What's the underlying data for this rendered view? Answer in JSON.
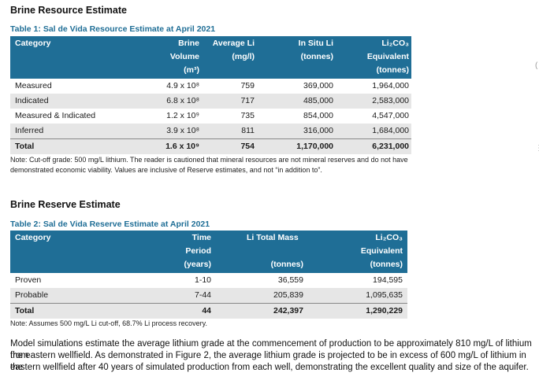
{
  "resource": {
    "heading": "Brine Resource Estimate",
    "caption": "Table 1:  Sal de Vida Resource Estimate at April 2021",
    "headers": {
      "category": "Category",
      "brine_volume": [
        "Brine",
        "Volume",
        "(m³)"
      ],
      "avg_li": [
        "Average Li",
        "(mg/l)"
      ],
      "in_situ_li": [
        "In Situ Li",
        "(tonnes)"
      ],
      "li2co3": [
        "Li₂CO₃",
        "Equivalent",
        "(tonnes)"
      ]
    },
    "rows": [
      {
        "category": "Measured",
        "brine_volume": "4.9 x 10⁸",
        "avg_li": "759",
        "in_situ_li": "369,000",
        "li2co3": "1,964,000"
      },
      {
        "category": "Indicated",
        "brine_volume": "6.8 x 10⁸",
        "avg_li": "717",
        "in_situ_li": "485,000",
        "li2co3": "2,583,000"
      },
      {
        "category": "Measured & Indicated",
        "brine_volume": "1.2 x 10⁹",
        "avg_li": "735",
        "in_situ_li": "854,000",
        "li2co3": "4,547,000"
      },
      {
        "category": "Inferred",
        "brine_volume": "3.9 x 10⁸",
        "avg_li": "811",
        "in_situ_li": "316,000",
        "li2co3": "1,684,000"
      }
    ],
    "total": {
      "category": "Total",
      "brine_volume": "1.6 x 10⁹",
      "avg_li": "754",
      "in_situ_li": "1,170,000",
      "li2co3": "6,231,000"
    },
    "note_line1": "Note: Cut-off grade: 500 mg/L lithium.  The reader is cautioned that mineral resources are not mineral reserves and do not have",
    "note_line2": "demonstrated economic viability.  Values are inclusive of Reserve estimates, and not “in addition to”."
  },
  "reserve": {
    "heading": "Brine Reserve Estimate",
    "caption": "Table 2:  Sal de Vida Reserve Estimate at April 2021",
    "headers": {
      "category": "Category",
      "time_period": [
        "Time",
        "Period",
        "(years)"
      ],
      "li_total_mass": [
        "Li Total Mass",
        "(tonnes)"
      ],
      "li2co3": [
        "Li₂CO₃",
        "Equivalent",
        "(tonnes)"
      ]
    },
    "rows": [
      {
        "category": "Proven",
        "time_period": "1-10",
        "li_total_mass": "36,559",
        "li2co3": "194,595"
      },
      {
        "category": "Probable",
        "time_period": "7-44",
        "li_total_mass": "205,839",
        "li2co3": "1,095,635"
      }
    ],
    "total": {
      "category": "Total",
      "time_period": "44",
      "li_total_mass": "242,397",
      "li2co3": "1,290,229"
    },
    "note": "Note: Assumes 500 mg/L Li cut-off, 68.7% Li process recovery."
  },
  "paragraph": {
    "line1": "Model simulations estimate the average lithium grade at the commencement of production to be approximately 810 mg/L of lithium from",
    "line2": "the eastern wellfield.  As demonstrated in Figure 2, the average lithium grade is projected to be in excess of 600 mg/L of lithium in the",
    "line3": "eastern wellfield after 40 years of simulated production from each well, demonstrating the excellent quality and size of the aquifer."
  }
}
